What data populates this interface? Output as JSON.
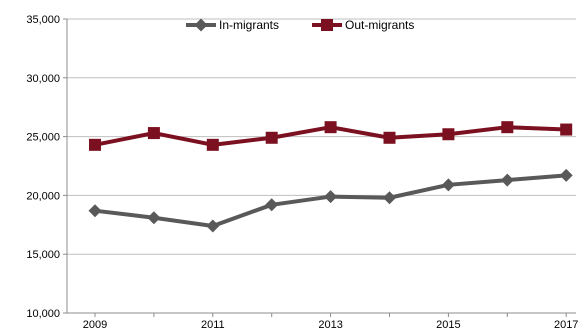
{
  "chart_data": {
    "type": "line",
    "title": "",
    "xlabel": "",
    "ylabel": "",
    "x": [
      2009,
      2010,
      2011,
      2012,
      2013,
      2014,
      2015,
      2016,
      2017
    ],
    "x_tick_labels": [
      "2009",
      "2011",
      "2013",
      "2015",
      "2017"
    ],
    "ylim": [
      10000,
      35000
    ],
    "y_tick_labels": [
      "10,000",
      "15,000",
      "20,000",
      "25,000",
      "30,000",
      "35,000"
    ],
    "y_ticks": [
      10000,
      15000,
      20000,
      25000,
      30000,
      35000
    ],
    "grid": "horizontal",
    "legend_position": "top",
    "series": [
      {
        "name": "In-migrants",
        "color": "#595959",
        "marker": "diamond",
        "values": [
          18700,
          18100,
          17400,
          19200,
          19900,
          19800,
          20900,
          21300,
          21700
        ]
      },
      {
        "name": "Out-migrants",
        "color": "#7b1020",
        "marker": "square",
        "values": [
          24300,
          25300,
          24300,
          24900,
          25800,
          24900,
          25200,
          25800,
          25600
        ]
      }
    ]
  }
}
